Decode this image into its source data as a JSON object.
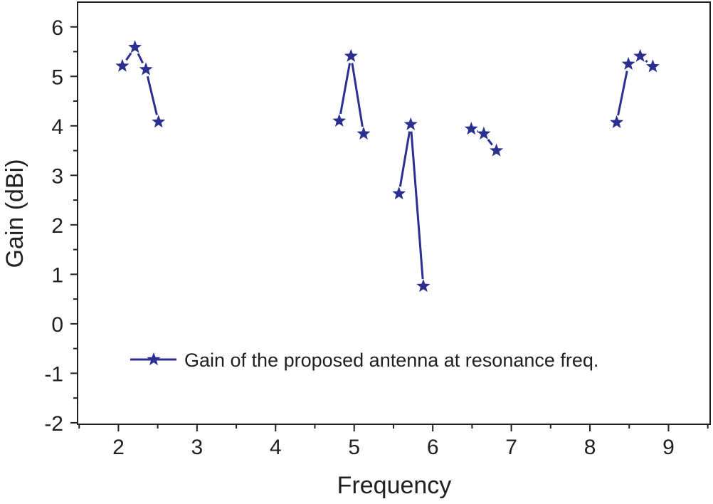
{
  "chart_data": {
    "type": "line",
    "title": "",
    "xlabel": "Frequency",
    "ylabel": "Gain (dBi)",
    "xlim": [
      1.48,
      9.53
    ],
    "ylim": [
      -2.03,
      6.5
    ],
    "xticks": [
      "2",
      "3",
      "4",
      "5",
      "6",
      "7",
      "8",
      "9"
    ],
    "xtick_values": [
      2,
      3,
      4,
      5,
      6,
      7,
      8,
      9
    ],
    "yticks": [
      "-2",
      "-1",
      "0",
      "1",
      "2",
      "3",
      "4",
      "5",
      "6"
    ],
    "ytick_values": [
      -2,
      -1,
      0,
      1,
      2,
      3,
      4,
      5,
      6
    ],
    "grid": false,
    "legend_position": "lower-center",
    "colors": {
      "series": "#2b3090",
      "axis": "#231f20"
    },
    "series": [
      {
        "name": "Gain of the proposed antenna at resonance freq.",
        "marker": "star",
        "segments": [
          {
            "x": [
              2.05,
              2.21,
              2.35,
              2.51
            ],
            "y": [
              5.21,
              5.59,
              5.14,
              4.08
            ]
          },
          {
            "x": [
              4.81,
              4.96,
              5.12
            ],
            "y": [
              4.1,
              5.41,
              3.84
            ]
          },
          {
            "x": [
              5.57,
              5.72,
              5.88
            ],
            "y": [
              2.63,
              4.03,
              0.76
            ]
          },
          {
            "x": [
              6.49,
              6.65,
              6.81
            ],
            "y": [
              3.94,
              3.84,
              3.5
            ]
          },
          {
            "x": [
              8.34,
              8.49,
              8.64,
              8.8
            ],
            "y": [
              4.07,
              5.25,
              5.41,
              5.2
            ]
          }
        ]
      }
    ]
  }
}
